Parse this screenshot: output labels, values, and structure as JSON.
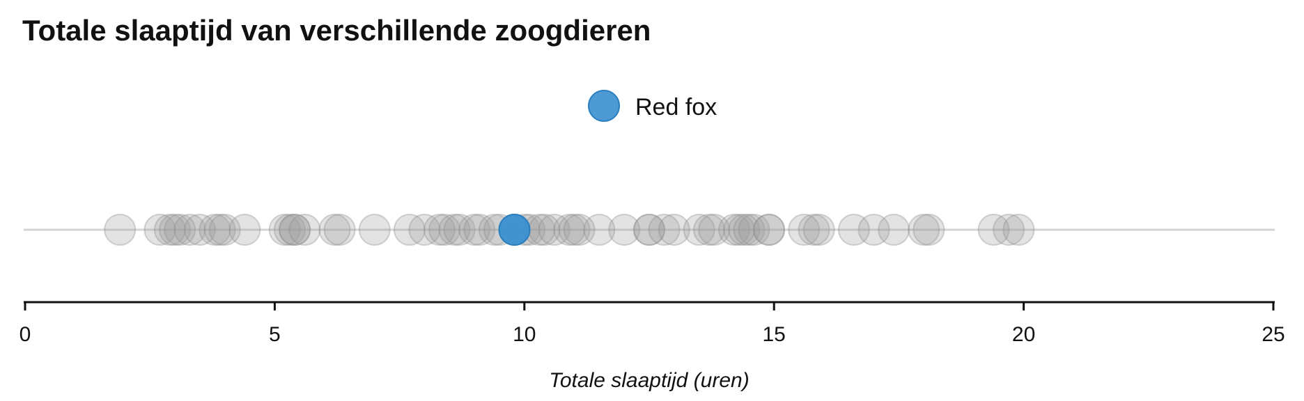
{
  "chart_data": {
    "type": "scatter",
    "title": "Totale slaaptijd van verschillende zoogdieren",
    "xlabel": "Totale slaaptijd (uren)",
    "ylabel": "",
    "xlim": [
      0,
      25
    ],
    "xticks": [
      0,
      5,
      10,
      15,
      20,
      25
    ],
    "grid": false,
    "legend": {
      "position": "top-center",
      "entries": [
        {
          "label": "Red fox",
          "color": "#3a8fd0"
        }
      ]
    },
    "highlight": {
      "name": "Red fox",
      "value": 9.8,
      "color": "#3a8fd0"
    },
    "series": [
      {
        "color": "#9a9a9a",
        "values": [
          1.9,
          2.7,
          2.9,
          3.0,
          3.1,
          3.3,
          3.5,
          3.8,
          3.9,
          4.0,
          4.4,
          5.2,
          5.3,
          5.4,
          5.4,
          5.6,
          6.2,
          6.3,
          7.0,
          7.7,
          8.0,
          8.3,
          8.4,
          8.6,
          8.7,
          9.0,
          9.1,
          9.4,
          9.5,
          9.8,
          10.0,
          10.1,
          10.3,
          10.4,
          10.6,
          10.9,
          11.0,
          11.1,
          11.5,
          12.0,
          12.5,
          12.5,
          12.8,
          13.0,
          13.5,
          13.7,
          13.8,
          14.2,
          14.3,
          14.4,
          14.5,
          14.6,
          14.9,
          14.9,
          15.6,
          15.8,
          15.9,
          16.6,
          17.0,
          17.4,
          18.0,
          18.1,
          19.4,
          19.7,
          19.9
        ]
      }
    ]
  }
}
